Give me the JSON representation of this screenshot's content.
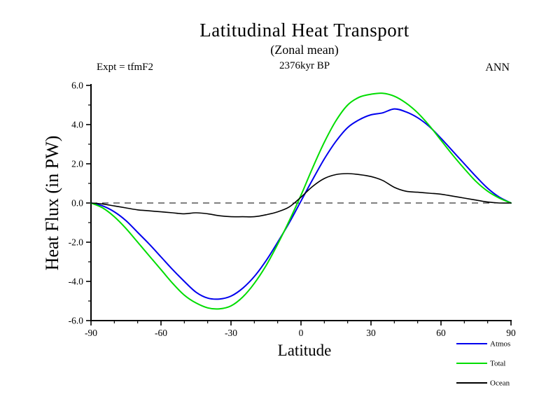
{
  "header": {
    "expt_label": "Expt = tfmF2",
    "time_label": "2376kyr BP",
    "season_label": "ANN"
  },
  "chart_data": {
    "type": "line",
    "title": "Latitudinal Heat Transport",
    "subtitle": "(Zonal mean)",
    "xlabel": "Latitude",
    "ylabel": "Heat Flux (in PW)",
    "xlim": [
      -90,
      90
    ],
    "ylim": [
      -6.0,
      6.0
    ],
    "grid": false,
    "zero_line": "dashed",
    "legend_position": "bottom-right-outside",
    "x_ticks": [
      -90,
      -60,
      -30,
      0,
      30,
      60,
      90
    ],
    "x_tick_labels": [
      "-90",
      "-60",
      "-30",
      "0",
      "30",
      "60",
      "90"
    ],
    "y_ticks": [
      -6.0,
      -4.0,
      -2.0,
      0.0,
      2.0,
      4.0,
      6.0
    ],
    "y_tick_labels": [
      "-6.0",
      "-4.0",
      "-2.0",
      "0.0",
      "2.0",
      "4.0",
      "6.0"
    ],
    "x": [
      -90,
      -85,
      -80,
      -75,
      -70,
      -65,
      -60,
      -55,
      -50,
      -45,
      -40,
      -35,
      -30,
      -25,
      -20,
      -15,
      -10,
      -5,
      0,
      5,
      10,
      15,
      20,
      25,
      30,
      35,
      40,
      45,
      50,
      55,
      60,
      65,
      70,
      75,
      80,
      85,
      90
    ],
    "series": [
      {
        "name": "Atmos",
        "color": "#0000ee",
        "width": 2,
        "values": [
          0.0,
          -0.15,
          -0.45,
          -0.9,
          -1.5,
          -2.1,
          -2.75,
          -3.4,
          -4.0,
          -4.55,
          -4.85,
          -4.9,
          -4.75,
          -4.35,
          -3.75,
          -2.95,
          -2.0,
          -1.0,
          0.1,
          1.2,
          2.25,
          3.15,
          3.85,
          4.25,
          4.5,
          4.6,
          4.8,
          4.65,
          4.35,
          3.9,
          3.3,
          2.65,
          2.0,
          1.35,
          0.75,
          0.3,
          0.0
        ]
      },
      {
        "name": "Total",
        "color": "#00dd00",
        "width": 2,
        "values": [
          0.0,
          -0.25,
          -0.7,
          -1.3,
          -2.0,
          -2.7,
          -3.4,
          -4.1,
          -4.7,
          -5.1,
          -5.35,
          -5.4,
          -5.25,
          -4.8,
          -4.1,
          -3.2,
          -2.1,
          -0.9,
          0.4,
          1.8,
          3.1,
          4.2,
          5.0,
          5.4,
          5.55,
          5.6,
          5.45,
          5.1,
          4.6,
          3.95,
          3.2,
          2.45,
          1.75,
          1.1,
          0.6,
          0.25,
          0.0
        ]
      },
      {
        "name": "Ocean",
        "color": "#000000",
        "width": 1.6,
        "values": [
          0.0,
          -0.05,
          -0.15,
          -0.25,
          -0.35,
          -0.4,
          -0.45,
          -0.5,
          -0.55,
          -0.5,
          -0.55,
          -0.65,
          -0.7,
          -0.7,
          -0.7,
          -0.6,
          -0.45,
          -0.2,
          0.3,
          0.85,
          1.25,
          1.45,
          1.5,
          1.45,
          1.35,
          1.15,
          0.8,
          0.6,
          0.55,
          0.5,
          0.45,
          0.35,
          0.25,
          0.15,
          0.05,
          0.0,
          0.0
        ]
      }
    ]
  }
}
